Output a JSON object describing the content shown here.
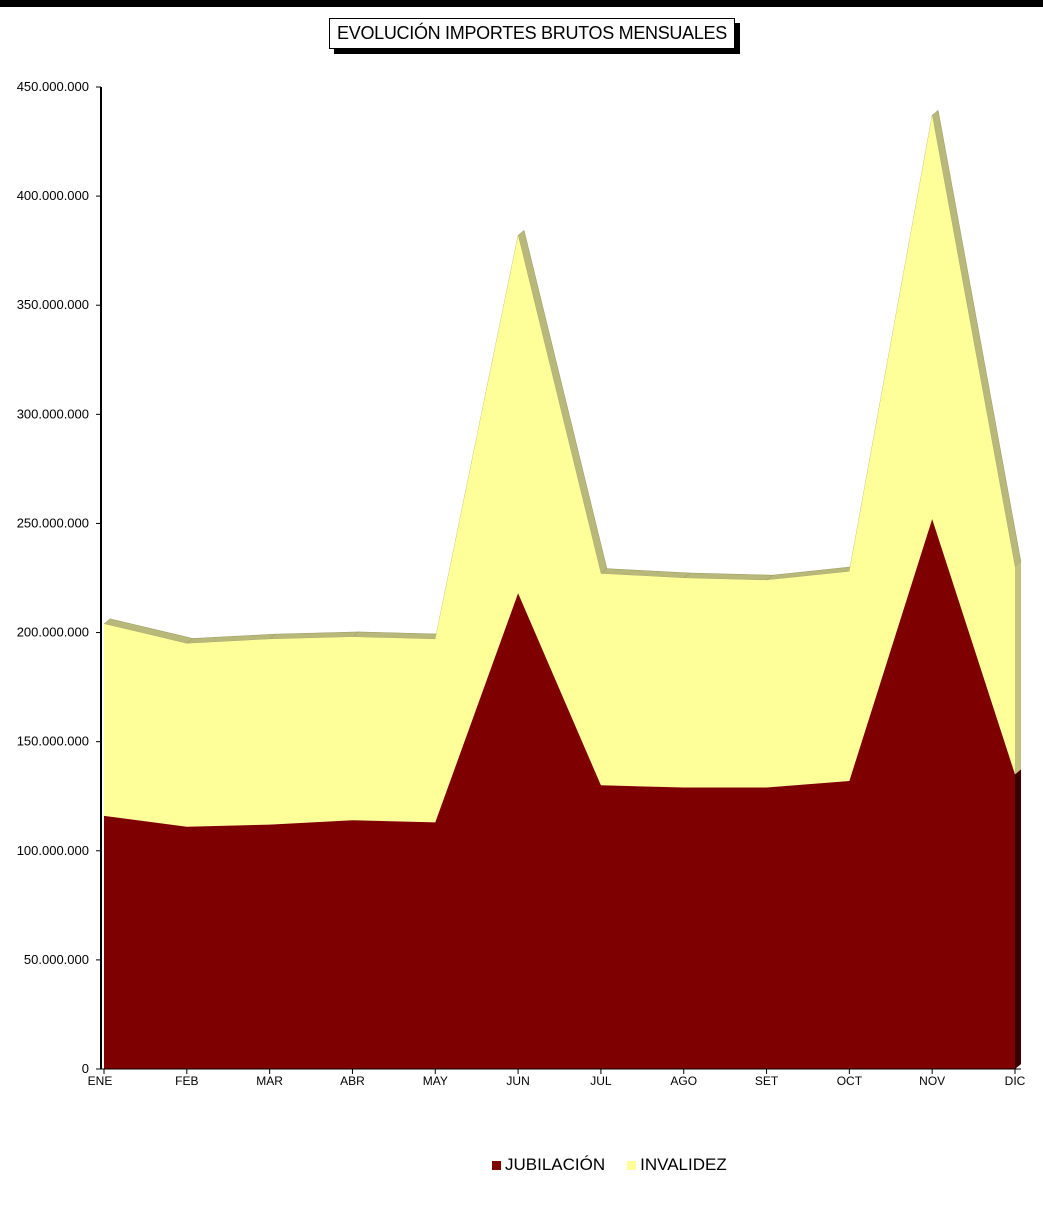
{
  "chart_data": {
    "type": "area",
    "stacked": true,
    "three_d": true,
    "title": "EVOLUCIÓN IMPORTES BRUTOS MENSUALES",
    "xlabel": "",
    "ylabel": "",
    "categories": [
      "ENE",
      "FEB",
      "MAR",
      "ABR",
      "MAY",
      "JUN",
      "JUL",
      "AGO",
      "SET",
      "OCT",
      "NOV",
      "DIC"
    ],
    "ylim": [
      0,
      450000000
    ],
    "yticks": [
      0,
      50000000,
      100000000,
      150000000,
      200000000,
      250000000,
      300000000,
      350000000,
      400000000,
      450000000
    ],
    "ytick_labels": [
      "0",
      "50.000.000",
      "100.000.000",
      "150.000.000",
      "200.000.000",
      "250.000.000",
      "300.000.000",
      "350.000.000",
      "400.000.000",
      "450.000.000"
    ],
    "series": [
      {
        "name": "JUBILACIÓN",
        "color": "#7f0000",
        "values": [
          116000000,
          111000000,
          112000000,
          114000000,
          113000000,
          218000000,
          130000000,
          129000000,
          129000000,
          132000000,
          252000000,
          135000000
        ]
      },
      {
        "name": "INVALIDEZ",
        "color": "#ffff99",
        "values": [
          88000000,
          84000000,
          85000000,
          84000000,
          84000000,
          164000000,
          97000000,
          96000000,
          95000000,
          96000000,
          185000000,
          95000000
        ]
      }
    ],
    "legend": "bottom",
    "grid": false
  }
}
